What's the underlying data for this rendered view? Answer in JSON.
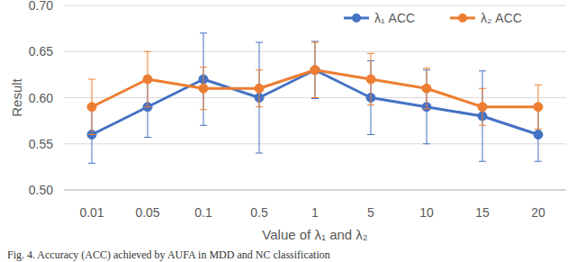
{
  "chart_data": {
    "type": "line",
    "x_label": "Value of λ₁ and λ₂",
    "y_label": "Result",
    "caption": "Fig. 4. Accuracy (ACC) achieved by AUFA in MDD and NC classification",
    "categories": [
      "0.01",
      "0.05",
      "0.1",
      "0.5",
      "1",
      "5",
      "10",
      "15",
      "20"
    ],
    "series": [
      {
        "name": "λ₁ ACC",
        "color": "#4472c4",
        "marker": "circle",
        "values": [
          0.56,
          0.59,
          0.62,
          0.6,
          0.63,
          0.6,
          0.59,
          0.58,
          0.56
        ],
        "errors": [
          0.031,
          0.033,
          0.05,
          0.06,
          0.031,
          0.04,
          0.04,
          0.049,
          0.029
        ]
      },
      {
        "name": "λ₂ ACC",
        "color": "#ed7d31",
        "marker": "circle",
        "values": [
          0.59,
          0.62,
          0.61,
          0.61,
          0.63,
          0.62,
          0.61,
          0.59,
          0.59
        ],
        "errors": [
          0.03,
          0.03,
          0.023,
          0.02,
          0.03,
          0.028,
          0.022,
          0.02,
          0.024
        ]
      }
    ],
    "ylim": [
      0.5,
      0.7
    ],
    "yticks": [
      {
        "value": 0.5,
        "label": "0.50"
      },
      {
        "value": 0.55,
        "label": "0.55"
      },
      {
        "value": 0.6,
        "label": "0.60"
      },
      {
        "value": 0.65,
        "label": "0.65"
      },
      {
        "value": 0.7,
        "label": "0.70"
      }
    ],
    "grid": true,
    "legend": "top-right"
  }
}
